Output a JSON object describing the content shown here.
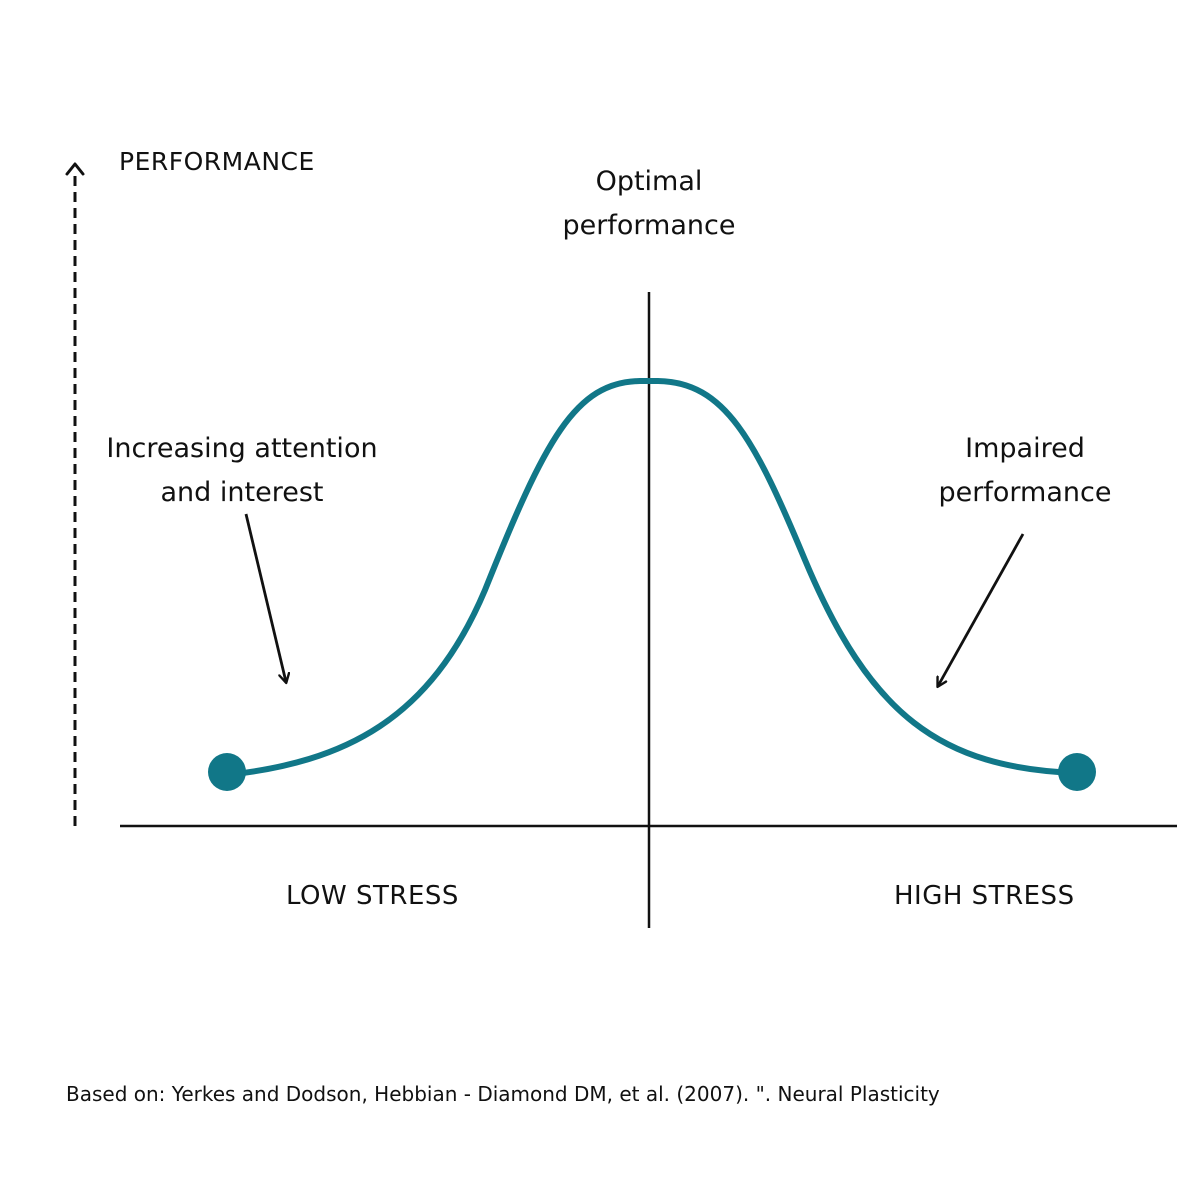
{
  "y_axis": {
    "label": "PERFORMANCE"
  },
  "x_axis": {
    "left_label": "LOW STRESS",
    "right_label": "HIGH STRESS"
  },
  "peak": {
    "lines": [
      "Optimal",
      "performance"
    ]
  },
  "left_annotation": {
    "lines": [
      "Increasing attention",
      "and interest"
    ]
  },
  "right_annotation": {
    "lines": [
      "Impaired",
      "performance"
    ]
  },
  "source": "Based on:  Yerkes and Dodson, Hebbian - Diamond DM, et al. (2007). \". Neural Plasticity",
  "colors": {
    "curve": "#117788",
    "ink": "#111111",
    "background": "#ffffff"
  }
}
